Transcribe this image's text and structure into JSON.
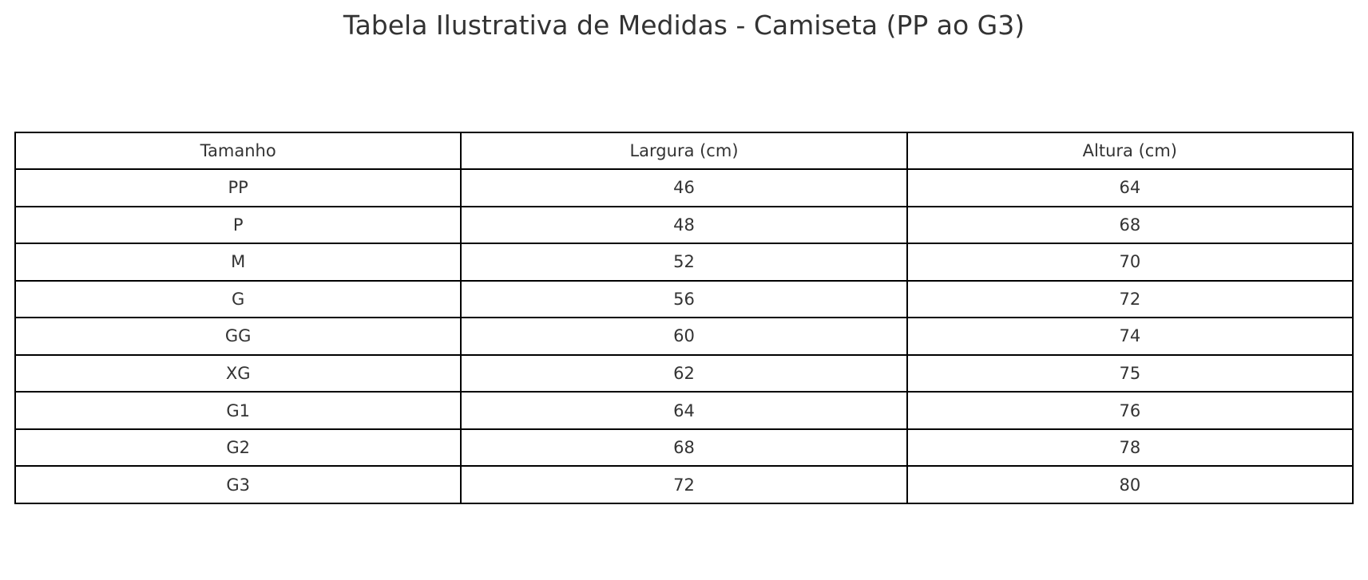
{
  "title": "Tabela Ilustrativa de Medidas - Camiseta (PP ao G3)",
  "table": {
    "columns": [
      "Tamanho",
      "Largura (cm)",
      "Altura (cm)"
    ],
    "rows": [
      [
        "PP",
        "46",
        "64"
      ],
      [
        "P",
        "48",
        "68"
      ],
      [
        "M",
        "52",
        "70"
      ],
      [
        "G",
        "56",
        "72"
      ],
      [
        "GG",
        "60",
        "74"
      ],
      [
        "XG",
        "62",
        "75"
      ],
      [
        "G1",
        "64",
        "76"
      ],
      [
        "G2",
        "68",
        "78"
      ],
      [
        "G3",
        "72",
        "80"
      ]
    ]
  },
  "colors": {
    "text": "#333333",
    "border": "#000000",
    "background": "#ffffff"
  },
  "chart_data": {
    "type": "table",
    "title": "Tabela Ilustrativa de Medidas - Camiseta (PP ao G3)",
    "columns": [
      "Tamanho",
      "Largura (cm)",
      "Altura (cm)"
    ],
    "rows": [
      [
        "PP",
        46,
        64
      ],
      [
        "P",
        48,
        68
      ],
      [
        "M",
        52,
        70
      ],
      [
        "G",
        56,
        72
      ],
      [
        "GG",
        60,
        74
      ],
      [
        "XG",
        62,
        75
      ],
      [
        "G1",
        64,
        76
      ],
      [
        "G2",
        68,
        78
      ],
      [
        "G3",
        72,
        80
      ]
    ],
    "layout": {
      "title_position": "top-center",
      "cell_text_align": "center",
      "grid": true,
      "header_bold": false
    }
  }
}
